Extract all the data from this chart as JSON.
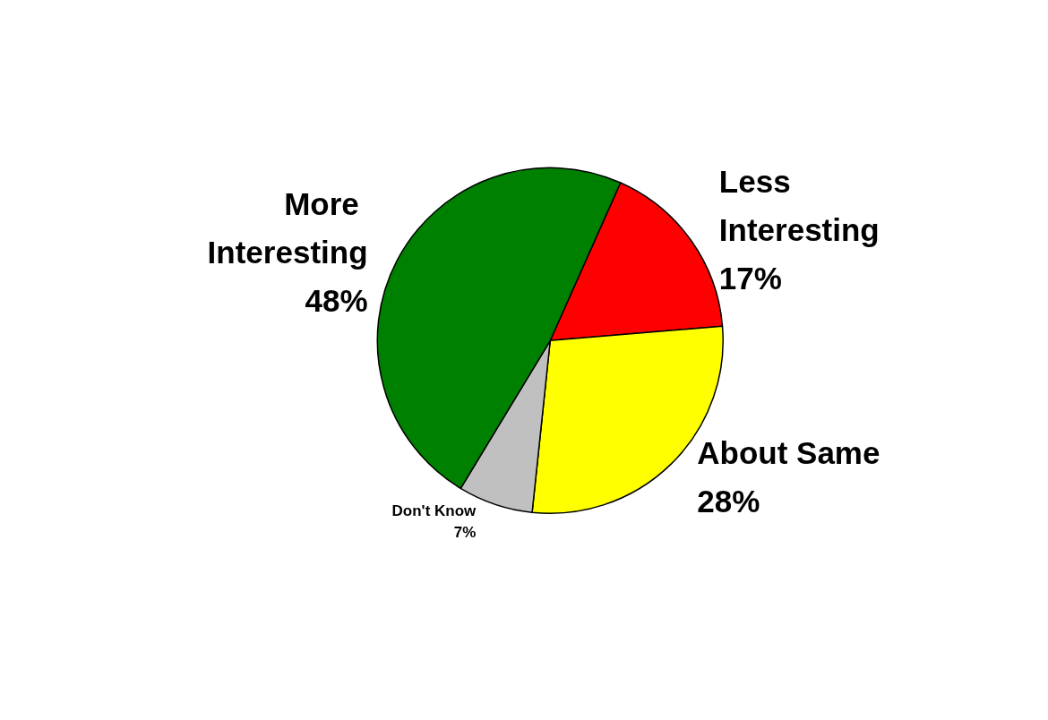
{
  "chart_data": {
    "type": "pie",
    "categories": [
      "Less Interesting",
      "About Same",
      "Don't Know",
      "More Interesting"
    ],
    "values": [
      17,
      28,
      7,
      48
    ],
    "colors": [
      "#ff0000",
      "#ffff00",
      "#c0c0c0",
      "#008000"
    ],
    "value_labels": [
      "17%",
      "28%",
      "7%",
      "48%"
    ]
  }
}
